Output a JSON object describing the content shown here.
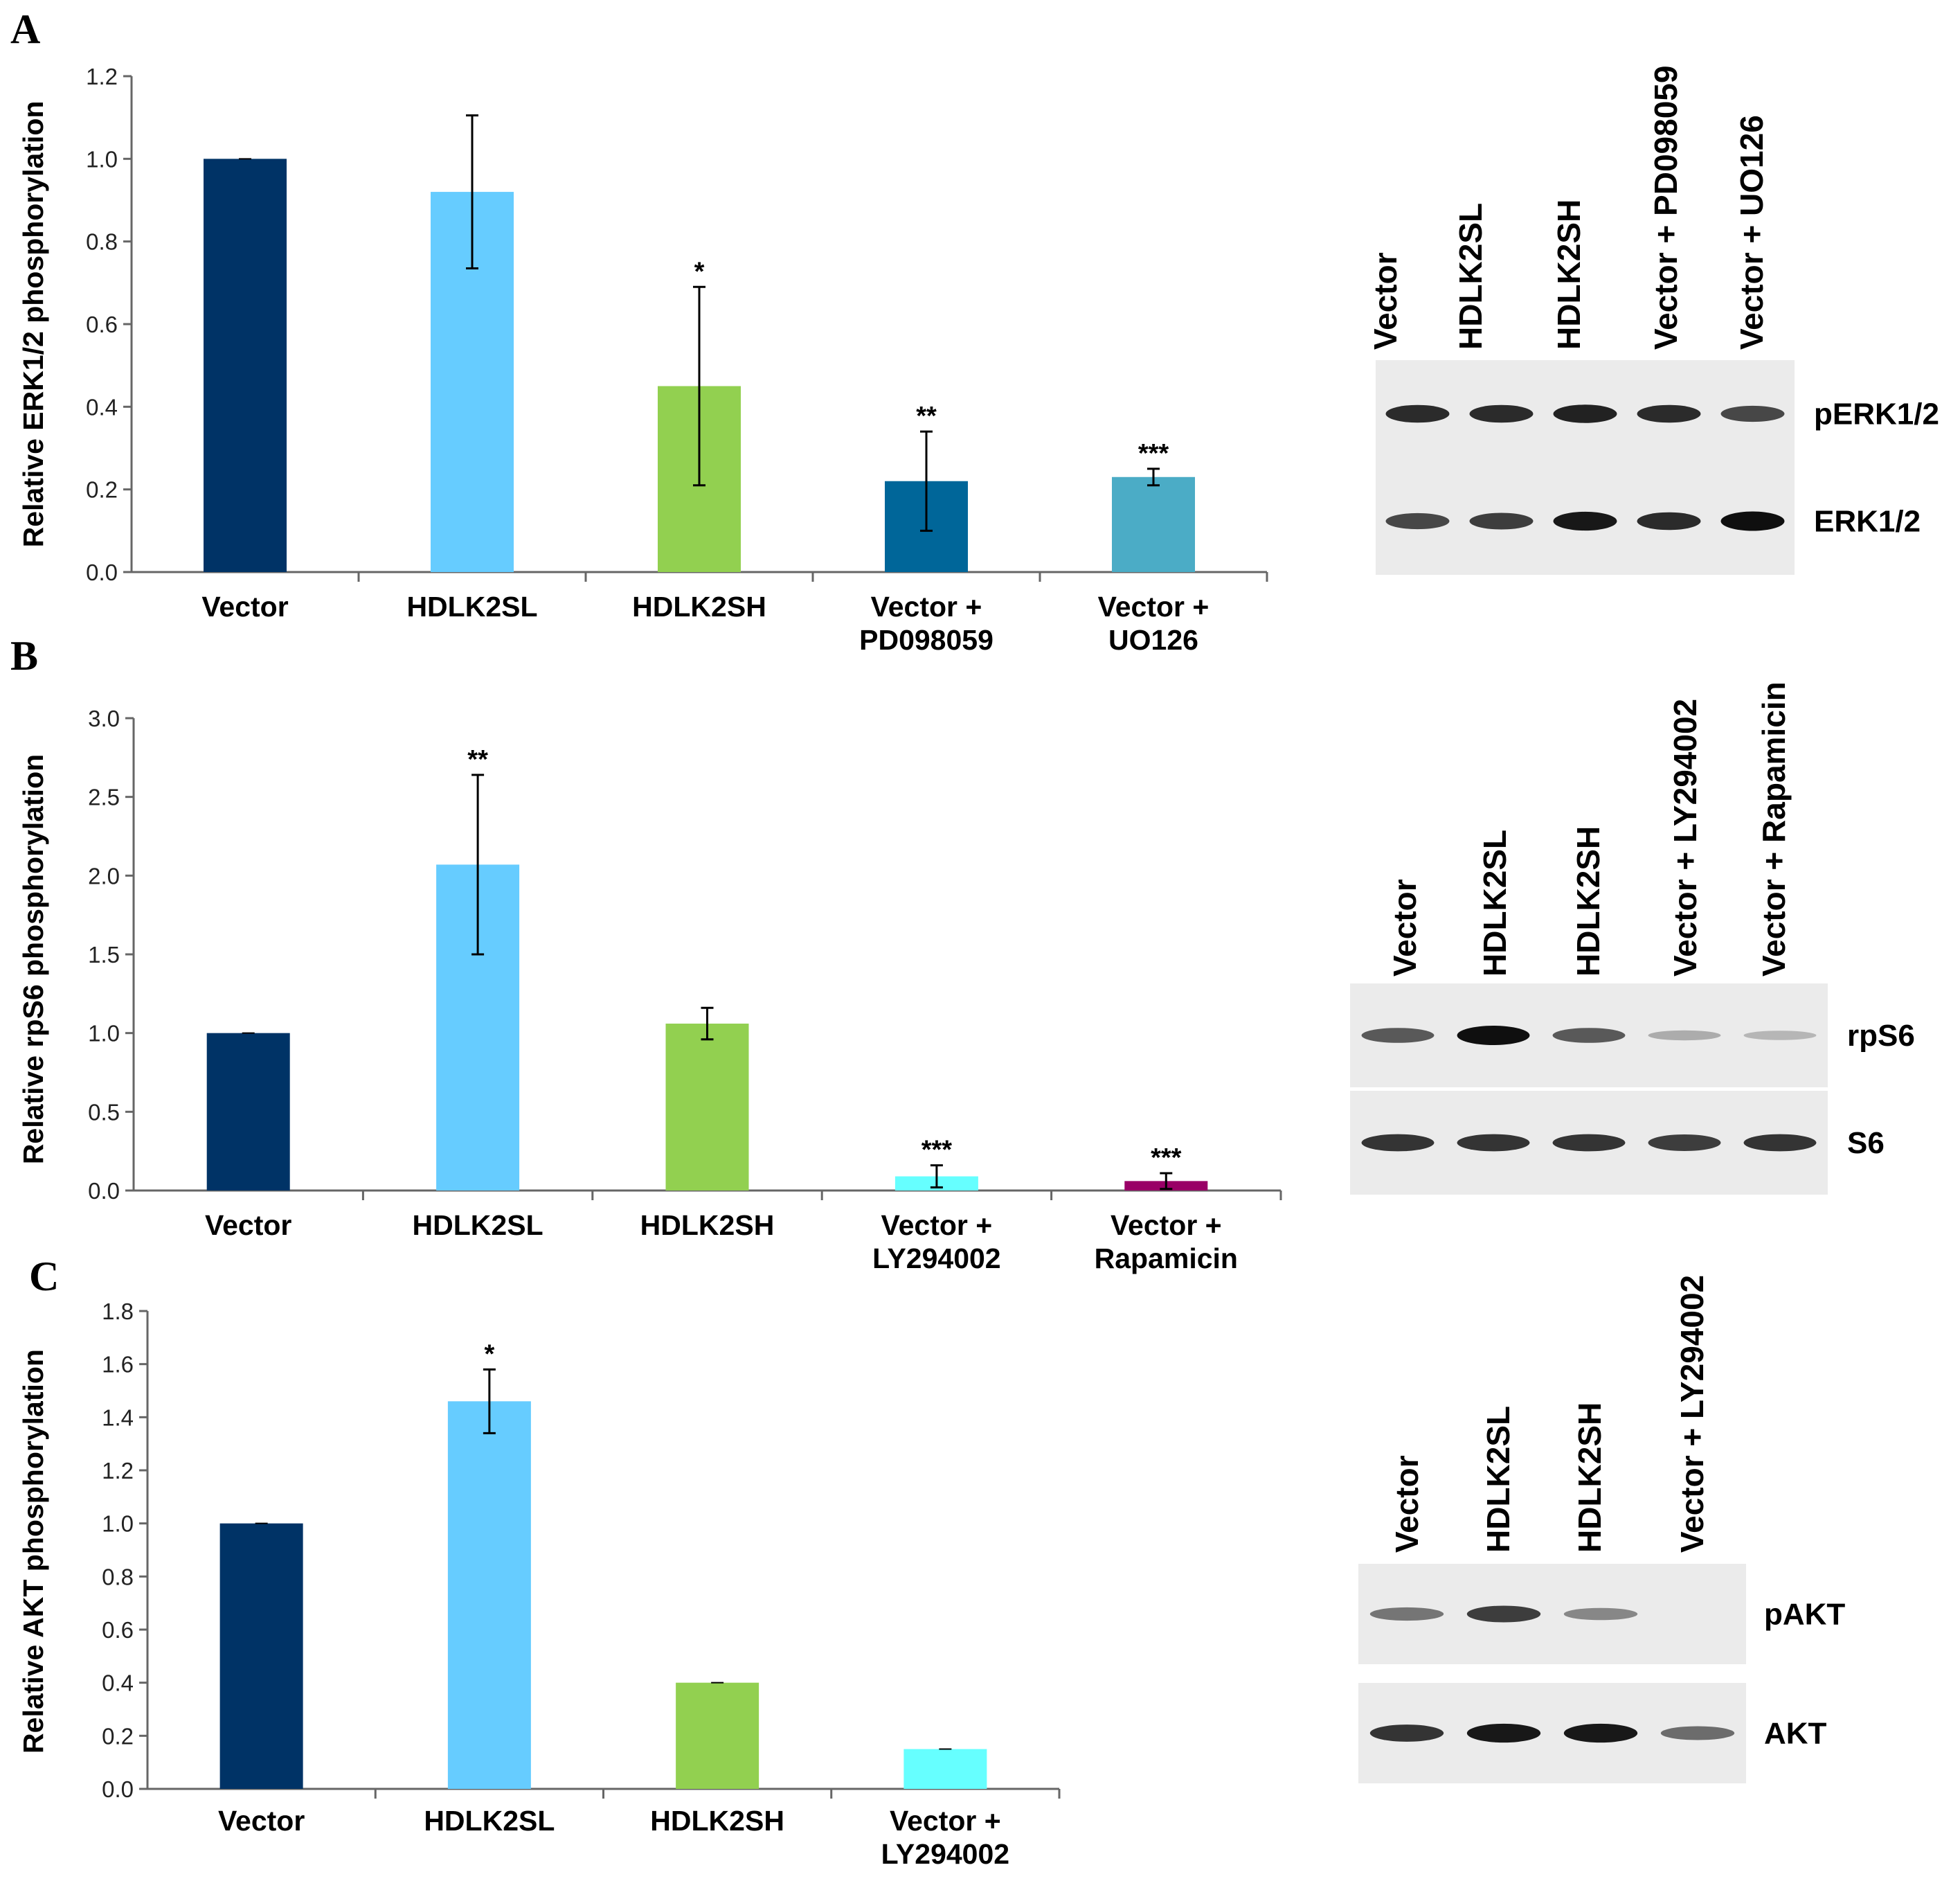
{
  "panels": [
    {
      "label": "A",
      "chart_data": {
        "type": "bar",
        "title": "",
        "xlabel": "",
        "ylabel": "Relative ERK1/2 phosphorylation",
        "ylim": [
          0,
          1.2
        ],
        "yticks": [
          0,
          0.2,
          0.4,
          0.6,
          0.8,
          1.0,
          1.2
        ],
        "grid": false,
        "categories": [
          [
            "Vector"
          ],
          [
            "HDLK2SL"
          ],
          [
            "HDLK2SH"
          ],
          [
            "Vector +",
            "PD098059"
          ],
          [
            "Vector +",
            "UO126"
          ]
        ],
        "values": [
          1.0,
          0.92,
          0.45,
          0.22,
          0.23
        ],
        "errors": [
          0.0,
          0.185,
          0.24,
          0.12,
          0.02
        ],
        "colors": [
          "#003366",
          "#66ccff",
          "#92d050",
          "#006699",
          "#4bacc6"
        ],
        "significance": [
          "",
          "",
          "*",
          "**",
          "***"
        ]
      },
      "blot": {
        "lanes": [
          "Vector",
          "HDLK2SL",
          "HDLK2SH",
          "Vector + PD098059",
          "Vector + UO126"
        ],
        "bands": [
          {
            "label": "pERK1/2",
            "intensity": [
              0.85,
              0.85,
              0.9,
              0.85,
              0.7
            ]
          },
          {
            "label": "ERK1/2",
            "intensity": [
              0.7,
              0.75,
              0.95,
              0.85,
              1.0
            ]
          }
        ]
      }
    },
    {
      "label": "B",
      "chart_data": {
        "type": "bar",
        "title": "",
        "xlabel": "",
        "ylabel": "Relative rpS6 phosphorylation",
        "ylim": [
          0,
          3.0
        ],
        "yticks": [
          0,
          0.5,
          1.0,
          1.5,
          2.0,
          2.5,
          3.0
        ],
        "grid": false,
        "categories": [
          [
            "Vector"
          ],
          [
            "HDLK2SL"
          ],
          [
            "HDLK2SH"
          ],
          [
            "Vector +",
            "LY294002"
          ],
          [
            "Vector +",
            "Rapamicin"
          ]
        ],
        "values": [
          1.0,
          2.07,
          1.06,
          0.09,
          0.06
        ],
        "errors": [
          0.0,
          0.57,
          0.1,
          0.07,
          0.05
        ],
        "colors": [
          "#003366",
          "#66ccff",
          "#92d050",
          "#66ffff",
          "#990066"
        ],
        "significance": [
          "",
          "**",
          "",
          "***",
          "***"
        ]
      },
      "blot": {
        "lanes": [
          "Vector",
          "HDLK2SL",
          "HDLK2SH",
          "Vector + LY294002",
          "Vector + Rapamicin"
        ],
        "bands": [
          {
            "label": "rpS6",
            "intensity": [
              0.6,
              1.0,
              0.6,
              0.15,
              0.1
            ]
          },
          {
            "label": "S6",
            "intensity": [
              0.8,
              0.8,
              0.8,
              0.75,
              0.8
            ]
          }
        ]
      }
    },
    {
      "label": "C",
      "chart_data": {
        "type": "bar",
        "title": "",
        "xlabel": "",
        "ylabel": "Relative AKT phosphorylation",
        "ylim": [
          0,
          1.8
        ],
        "yticks": [
          0,
          0.2,
          0.4,
          0.6,
          0.8,
          1.0,
          1.2,
          1.4,
          1.6,
          1.8
        ],
        "grid": false,
        "categories": [
          [
            "Vector"
          ],
          [
            "HDLK2SL"
          ],
          [
            "HDLK2SH"
          ],
          [
            "Vector +",
            "LY294002"
          ]
        ],
        "values": [
          1.0,
          1.46,
          0.4,
          0.15
        ],
        "errors": [
          0.0,
          0.12,
          0.0,
          0.0
        ],
        "colors": [
          "#003366",
          "#66ccff",
          "#92d050",
          "#66ffff"
        ],
        "significance": [
          "",
          "*",
          "",
          ""
        ]
      },
      "blot": {
        "lanes": [
          "Vector",
          "HDLK2SL",
          "HDLK2SH",
          "Vector + LY294002"
        ],
        "bands": [
          {
            "label": "pAKT",
            "intensity": [
              0.45,
              0.75,
              0.35,
              0.0
            ]
          },
          {
            "label": "AKT",
            "intensity": [
              0.8,
              0.95,
              0.95,
              0.5
            ]
          }
        ]
      }
    }
  ]
}
